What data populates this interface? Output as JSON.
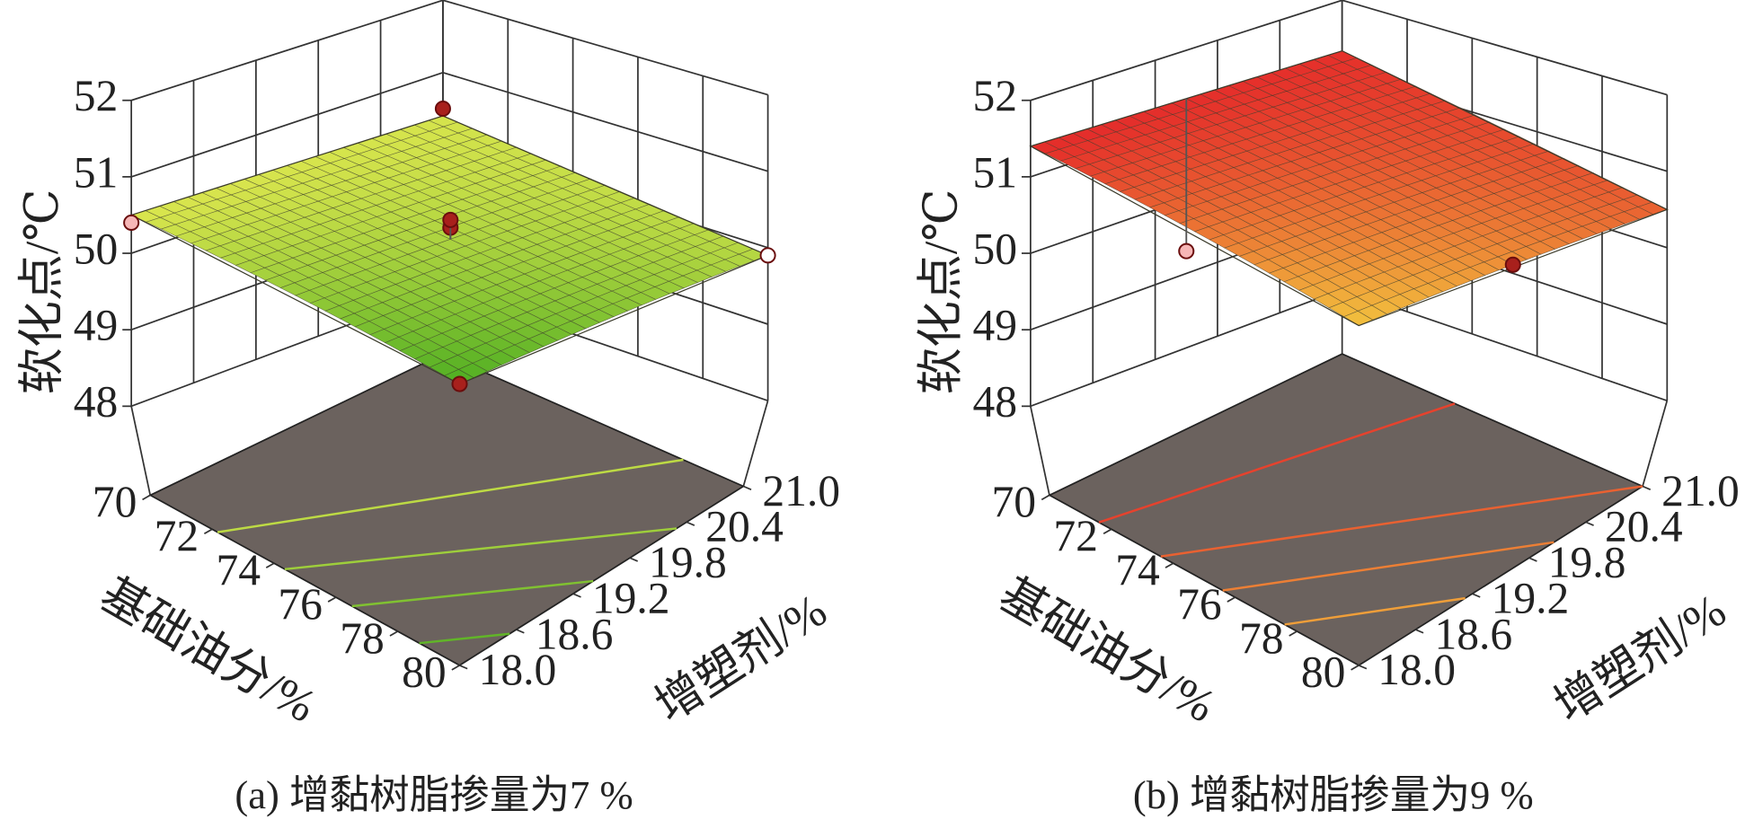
{
  "chart_data": [
    {
      "type": "surface",
      "title": "(a) 增黏树脂掺量为7 %",
      "xlabel": "基础油分/%",
      "ylabel": "增塑剂/%",
      "zlabel": "软化点/℃",
      "xlim": [
        70,
        80
      ],
      "xticks": [
        70,
        72,
        74,
        76,
        78,
        80
      ],
      "ylim": [
        18,
        21
      ],
      "yticks": [
        {
          "value": 18,
          "label": "18.0"
        },
        18.6,
        19.2,
        19.8,
        20.4,
        {
          "value": 21,
          "label": "21.0"
        }
      ],
      "zlim": [
        48,
        52
      ],
      "zticks": [
        48,
        49,
        50,
        51,
        52
      ],
      "surface": {
        "x": [
          70,
          80
        ],
        "y": [
          18,
          21
        ],
        "z": [
          [
            50.5,
            50.4
          ],
          [
            48.2,
            49.9
          ]
        ]
      },
      "colorscale": [
        "#4fae22",
        "#dbe64e"
      ],
      "contour_levels": [
        48.5,
        49,
        49.5,
        50
      ],
      "floor_color": "#6b625e",
      "points": {
        "x": [
          70,
          70,
          75,
          75,
          80,
          80
        ],
        "y": [
          18,
          21,
          19.5,
          19.5,
          18,
          21
        ],
        "z": [
          50.4,
          50.5,
          49.9,
          50.0,
          48.2,
          49.9
        ],
        "colors": [
          "#f6b6b6",
          "#a8201c",
          "#a8201c",
          "#a8201c",
          "#a8201c",
          "#ffffff"
        ]
      }
    },
    {
      "type": "surface",
      "title": "(b) 增黏树脂掺量为9 %",
      "xlabel": "基础油分/%",
      "ylabel": "增塑剂/%",
      "zlabel": "软化点/℃",
      "xlim": [
        70,
        80
      ],
      "xticks": [
        70,
        72,
        74,
        76,
        78,
        80
      ],
      "ylim": [
        18,
        21
      ],
      "yticks": [
        {
          "value": 18,
          "label": "18.0"
        },
        18.6,
        19.2,
        19.8,
        20.4,
        {
          "value": 21,
          "label": "21.0"
        }
      ],
      "zlim": [
        48,
        52
      ],
      "zticks": [
        48,
        49,
        50,
        51,
        52
      ],
      "surface": {
        "x": [
          70,
          80
        ],
        "y": [
          18,
          21
        ],
        "z": [
          [
            51.4,
            51.3
          ],
          [
            48.9,
            50.5
          ]
        ]
      },
      "colorscale": [
        "#f2c23e",
        "#e42a2a"
      ],
      "contour_levels": [
        49.5,
        50,
        50.5,
        51
      ],
      "floor_color": "#6b625e",
      "points": {
        "x": [
          70,
          80
        ],
        "y": [
          19.5,
          19.5
        ],
        "z": [
          49.3,
          49.7
        ],
        "colors": [
          "#f6b6b6",
          "#a8201c"
        ]
      }
    }
  ]
}
